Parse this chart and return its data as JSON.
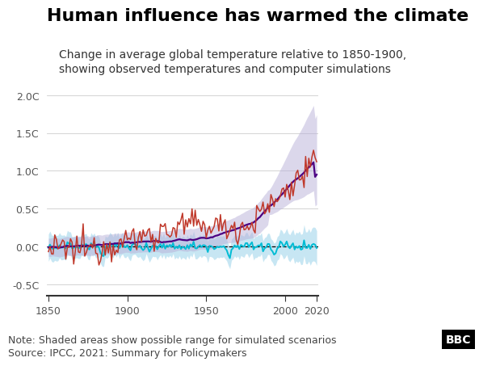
{
  "title": "Human influence has warmed the climate",
  "subtitle": "Change in average global temperature relative to 1850-1900,\nshowing observed temperatures and computer simulations",
  "note": "Note: Shaded areas show possible range for simulated scenarios",
  "source": "Source: IPCC, 2021: Summary for Policymakers",
  "bbc_label": "BBC",
  "xlabel_ticks": [
    1850,
    1900,
    1950,
    2000,
    2020
  ],
  "ylabel_ticks": [
    -0.5,
    0.0,
    0.5,
    1.0,
    1.5,
    2.0
  ],
  "ylabel_labels": [
    "-0.5C",
    "0.0C",
    "0.5C",
    "1.0C",
    "1.5C",
    "2.0C"
  ],
  "ylim": [
    -0.65,
    2.1
  ],
  "xlim": [
    1849,
    2021
  ],
  "color_observed": "#c0392b",
  "color_human": "#4b0082",
  "color_natural": "#00bcd4",
  "color_human_shade": "#b8b0d8",
  "color_natural_shade": "#90cfe8",
  "bg_color": "#ffffff",
  "title_fontsize": 16,
  "subtitle_fontsize": 10,
  "note_fontsize": 9,
  "annotation_fontsize": 9.5
}
